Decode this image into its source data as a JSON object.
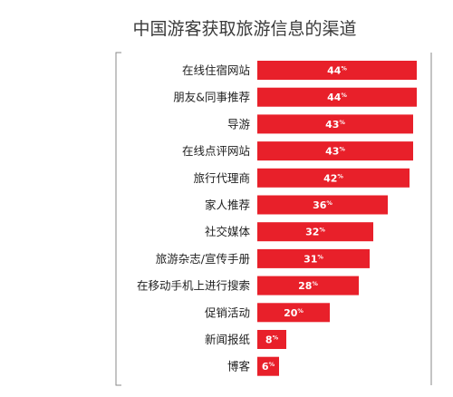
{
  "chart_data": {
    "type": "bar",
    "orientation": "horizontal",
    "title": "中国游客获取旅游信息的渠道",
    "categories": [
      "在线住宿网站",
      "朋友&同事推荐",
      "导游",
      "在线点评网站",
      "旅行代理商",
      "家人推荐",
      "社交媒体",
      "旅游杂志/宣传手册",
      "在移动手机上进行搜索",
      "促销活动",
      "新闻报纸",
      "博客"
    ],
    "values": [
      44,
      44,
      43,
      43,
      42,
      36,
      32,
      31,
      28,
      20,
      8,
      6
    ],
    "value_suffix": "%",
    "xlim": [
      0,
      44
    ],
    "bar_color": "#e8202a",
    "grid": false,
    "legend": "none"
  }
}
